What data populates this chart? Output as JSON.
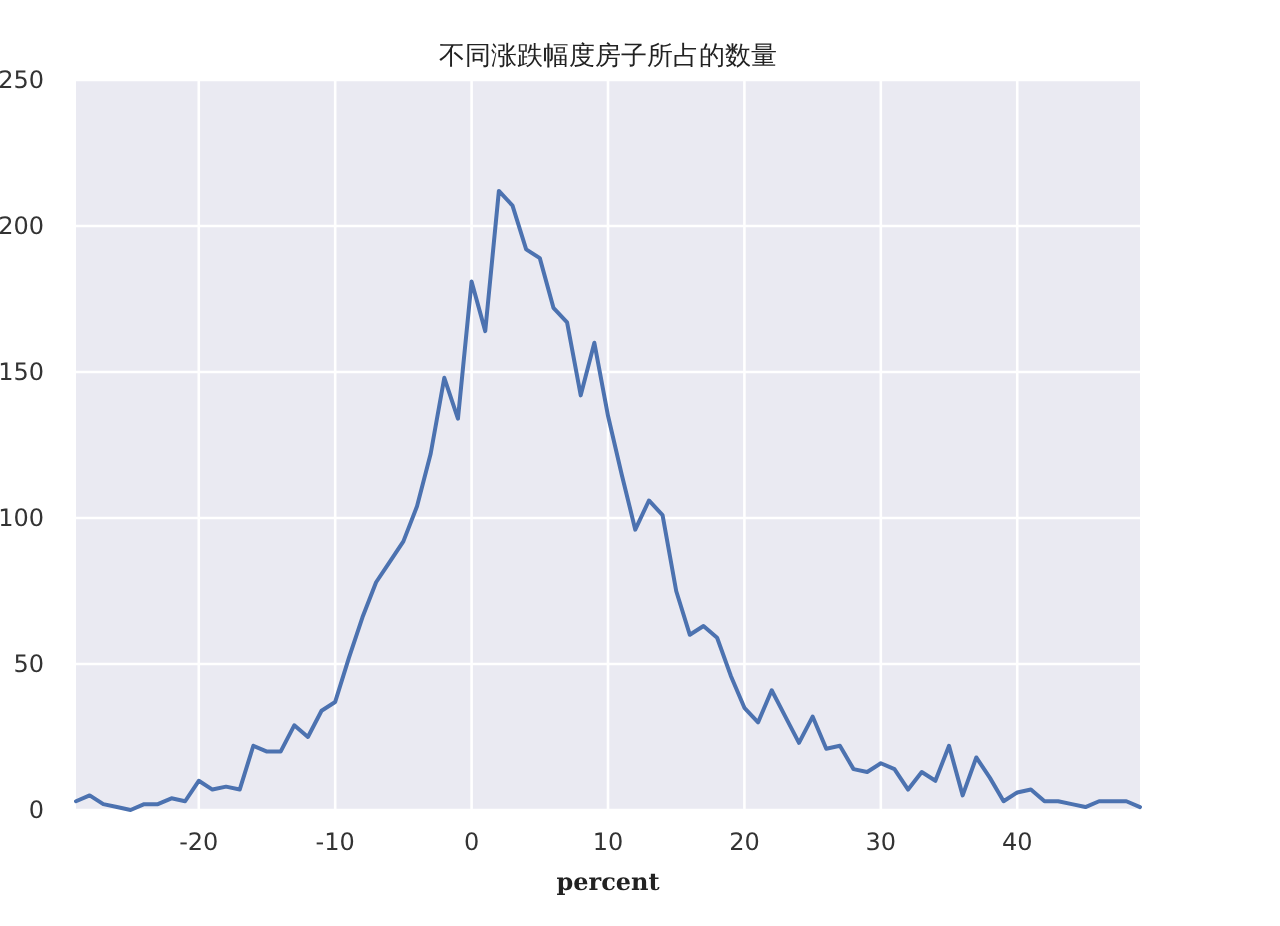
{
  "chart_data": {
    "type": "line",
    "title": "不同涨跌幅度房子所占的数量",
    "xlabel": "percent",
    "x": [
      -29,
      -28,
      -27,
      -26,
      -25,
      -24,
      -23,
      -22,
      -21,
      -20,
      -19,
      -18,
      -17,
      -16,
      -15,
      -14,
      -13,
      -12,
      -11,
      -10,
      -9,
      -8,
      -7,
      -6,
      -5,
      -4,
      -3,
      -2,
      -1,
      0,
      1,
      2,
      3,
      4,
      5,
      6,
      7,
      8,
      9,
      10,
      11,
      12,
      13,
      14,
      15,
      16,
      17,
      18,
      19,
      20,
      21,
      22,
      23,
      24,
      25,
      26,
      27,
      28,
      29,
      30,
      31,
      32,
      33,
      34,
      35,
      36,
      37,
      38,
      39,
      40,
      41,
      42,
      43,
      44,
      45,
      46,
      47,
      48,
      49
    ],
    "series": [
      {
        "color": "#4c72b0",
        "values": [
          3,
          5,
          2,
          1,
          0,
          2,
          2,
          4,
          3,
          10,
          7,
          8,
          7,
          22,
          20,
          20,
          29,
          25,
          34,
          37,
          52,
          66,
          78,
          85,
          92,
          104,
          122,
          148,
          134,
          181,
          164,
          212,
          207,
          192,
          189,
          172,
          167,
          142,
          160,
          135,
          115,
          96,
          106,
          101,
          75,
          60,
          63,
          59,
          46,
          35,
          30,
          41,
          32,
          23,
          32,
          21,
          22,
          14,
          13,
          16,
          14,
          7,
          13,
          10,
          22,
          5,
          18,
          11,
          3,
          6,
          7,
          3,
          3,
          2,
          1,
          3,
          3,
          3,
          1
        ]
      }
    ],
    "xlim": [
      -29,
      49
    ],
    "ylim": [
      0,
      250
    ],
    "xticks": [
      -20,
      -10,
      0,
      10,
      20,
      30,
      40
    ],
    "yticks": [
      0,
      50,
      100,
      150,
      200,
      250
    ],
    "grid": true,
    "marker": "none",
    "line_style": "solid"
  }
}
